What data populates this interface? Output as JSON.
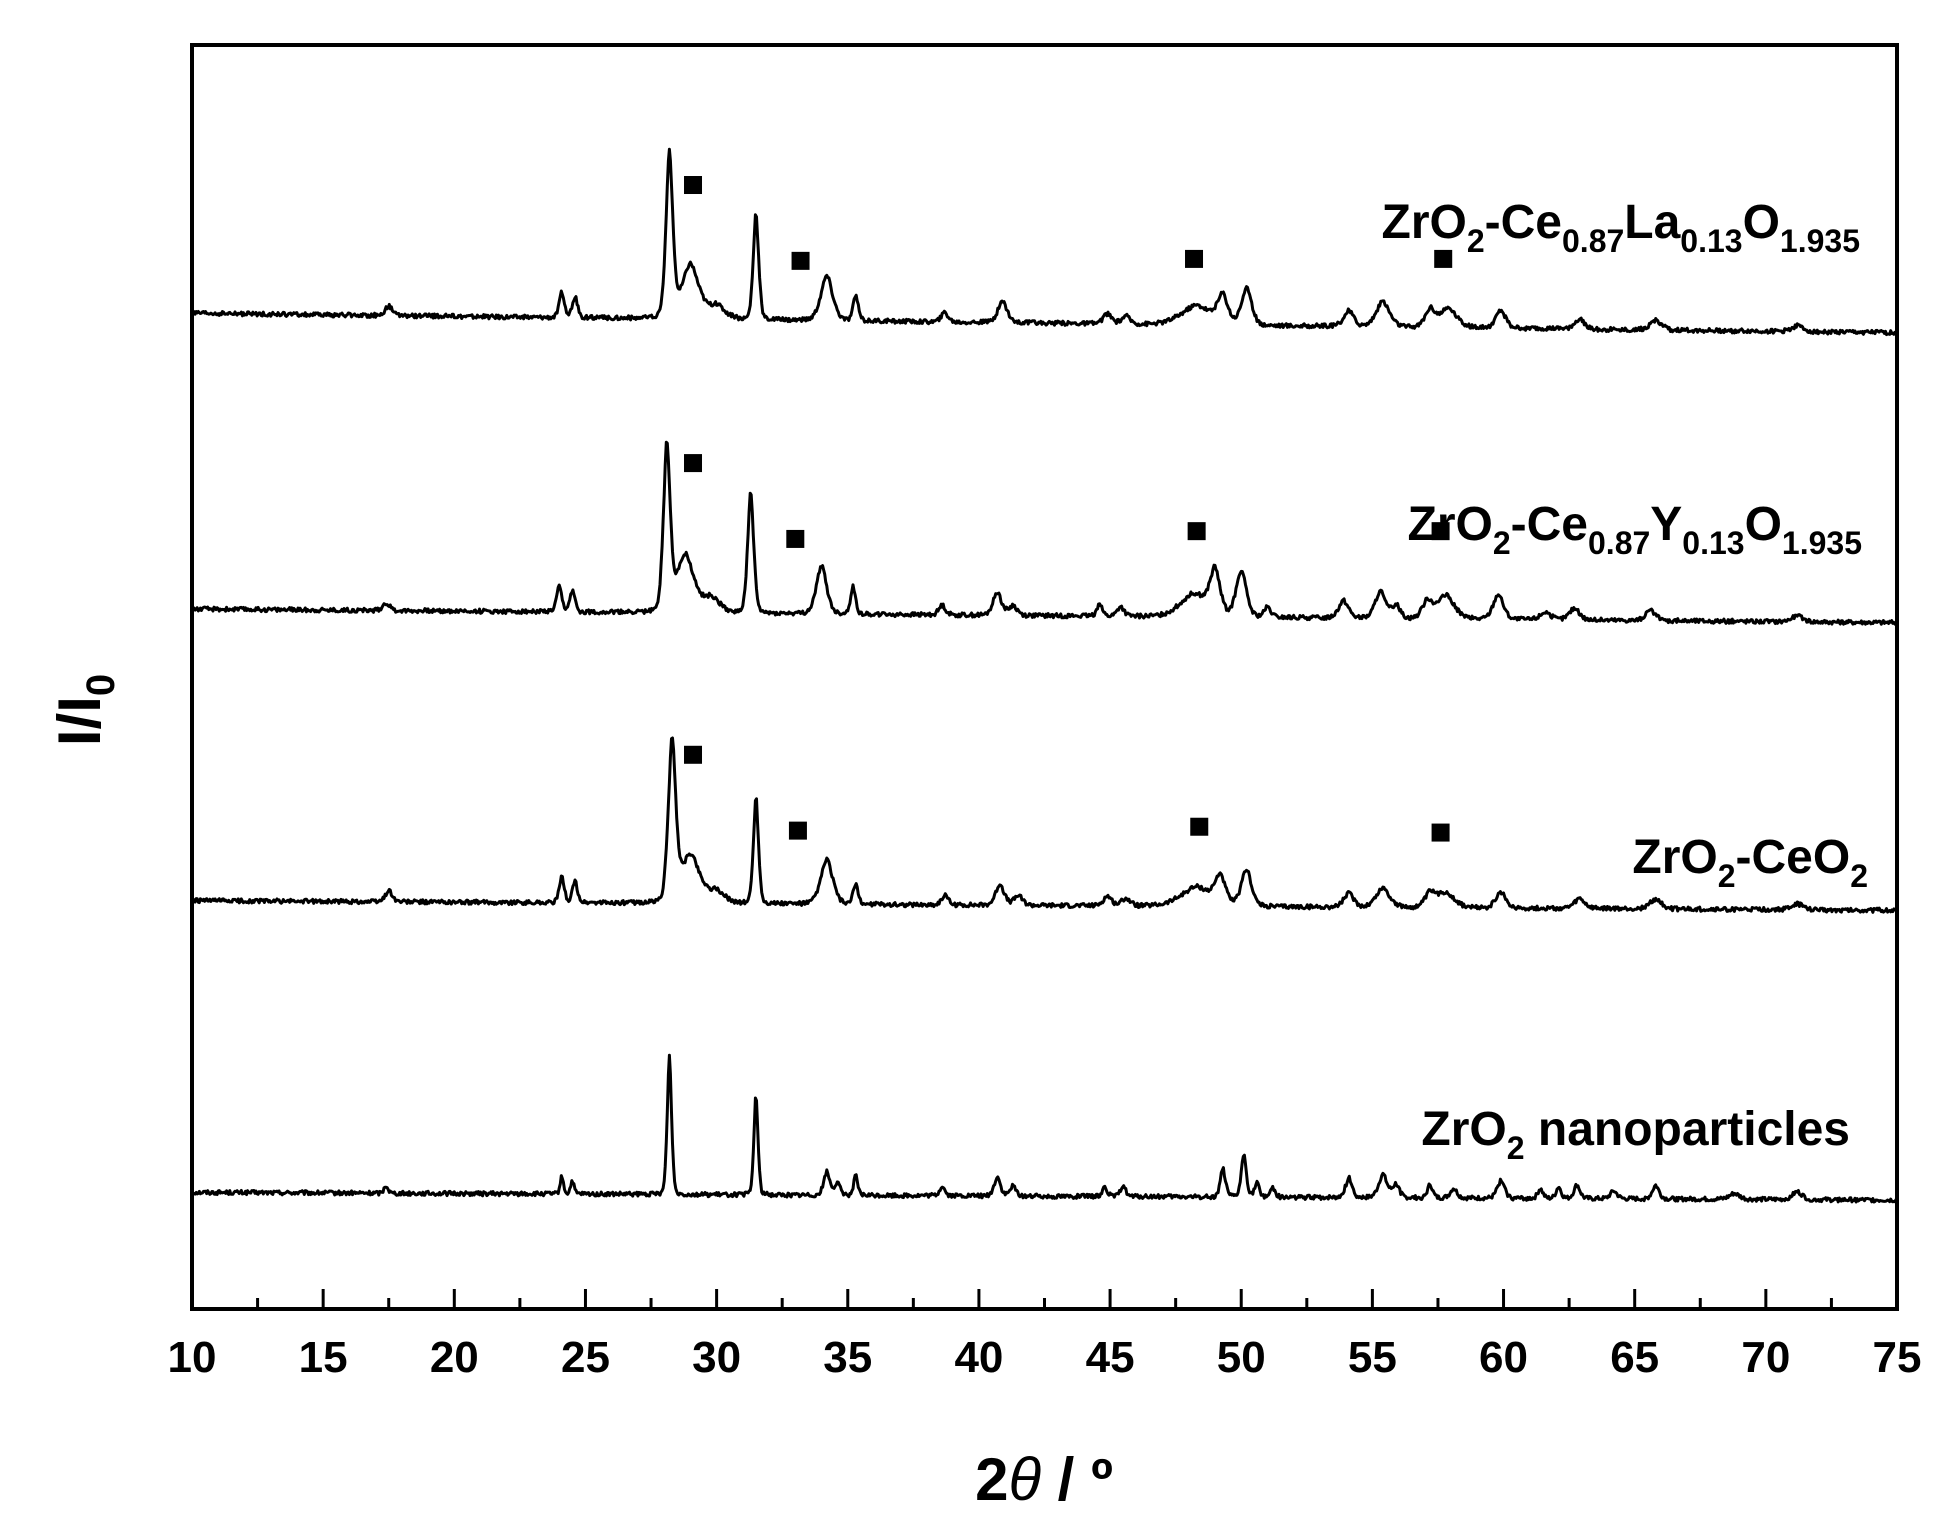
{
  "chart_data": {
    "type": "line",
    "title": "",
    "xlabel": "2θ / º",
    "xlabel_parts": {
      "prefix": "2",
      "symbol": "θ",
      "suffix": " / º"
    },
    "ylabel": "I/I0",
    "ylabel_parts": {
      "main": "I/I",
      "sub": "0"
    },
    "xlim": [
      10,
      75
    ],
    "x_ticks": [
      10,
      15,
      20,
      25,
      30,
      35,
      40,
      45,
      50,
      55,
      60,
      65,
      70,
      75
    ],
    "x_tick_labels": [
      "10",
      "15",
      "20",
      "25",
      "30",
      "35",
      "40",
      "45",
      "50",
      "55",
      "60",
      "65",
      "70",
      "75"
    ],
    "y_tick_labels": [],
    "grid": false,
    "legend": "none",
    "marker_symbol": "■",
    "series": [
      {
        "name": "ZrO2 nanoparticles",
        "label_parts": [
          {
            "text": "ZrO",
            "sub": false
          },
          {
            "text": "2",
            "sub": true
          },
          {
            "text": " nanoparticles",
            "sub": false
          }
        ],
        "baseline": [
          0.6,
          0.56
        ],
        "peaks": [
          [
            17.4,
            0.04,
            0.12
          ],
          [
            24.1,
            0.09,
            0.1
          ],
          [
            24.5,
            0.07,
            0.1
          ],
          [
            28.2,
            0.72,
            0.13
          ],
          [
            31.5,
            0.52,
            0.12
          ],
          [
            34.2,
            0.12,
            0.18
          ],
          [
            34.6,
            0.06,
            0.18
          ],
          [
            35.3,
            0.1,
            0.12
          ],
          [
            38.6,
            0.05,
            0.15
          ],
          [
            40.7,
            0.1,
            0.18
          ],
          [
            41.3,
            0.05,
            0.18
          ],
          [
            44.8,
            0.05,
            0.15
          ],
          [
            45.5,
            0.06,
            0.15
          ],
          [
            49.3,
            0.15,
            0.15
          ],
          [
            50.1,
            0.22,
            0.15
          ],
          [
            50.6,
            0.07,
            0.15
          ],
          [
            51.2,
            0.05,
            0.15
          ],
          [
            54.1,
            0.1,
            0.2
          ],
          [
            55.4,
            0.12,
            0.25
          ],
          [
            55.9,
            0.07,
            0.2
          ],
          [
            57.2,
            0.07,
            0.15
          ],
          [
            58.1,
            0.05,
            0.2
          ],
          [
            59.9,
            0.09,
            0.22
          ],
          [
            61.4,
            0.05,
            0.15
          ],
          [
            62.1,
            0.06,
            0.15
          ],
          [
            62.8,
            0.07,
            0.18
          ],
          [
            64.2,
            0.04,
            0.2
          ],
          [
            65.8,
            0.07,
            0.2
          ],
          [
            68.8,
            0.03,
            0.3
          ],
          [
            71.2,
            0.04,
            0.3
          ]
        ],
        "markers": []
      },
      {
        "name": "ZrO2-CeO2",
        "label_parts": [
          {
            "text": "ZrO",
            "sub": false
          },
          {
            "text": "2",
            "sub": true
          },
          {
            "text": "-CeO",
            "sub": false
          },
          {
            "text": "2",
            "sub": true
          }
        ],
        "baseline": [
          2.1,
          2.05
        ],
        "peaks": [
          [
            17.5,
            0.06,
            0.2
          ],
          [
            24.1,
            0.13,
            0.15
          ],
          [
            24.6,
            0.11,
            0.15
          ],
          [
            28.3,
            0.82,
            0.22
          ],
          [
            29.0,
            0.25,
            0.55
          ],
          [
            30.0,
            0.06,
            0.5
          ],
          [
            31.5,
            0.55,
            0.15
          ],
          [
            34.2,
            0.23,
            0.35
          ],
          [
            35.3,
            0.1,
            0.15
          ],
          [
            38.7,
            0.05,
            0.2
          ],
          [
            40.8,
            0.11,
            0.25
          ],
          [
            41.5,
            0.05,
            0.25
          ],
          [
            44.9,
            0.05,
            0.25
          ],
          [
            45.6,
            0.04,
            0.25
          ],
          [
            48.3,
            0.1,
            0.9
          ],
          [
            49.2,
            0.14,
            0.3
          ],
          [
            50.2,
            0.19,
            0.3
          ],
          [
            54.1,
            0.07,
            0.3
          ],
          [
            55.4,
            0.1,
            0.4
          ],
          [
            57.2,
            0.07,
            0.3
          ],
          [
            57.8,
            0.08,
            0.5
          ],
          [
            59.9,
            0.08,
            0.3
          ],
          [
            62.9,
            0.05,
            0.3
          ],
          [
            65.8,
            0.05,
            0.35
          ],
          [
            71.2,
            0.03,
            0.35
          ]
        ],
        "markers": [
          [
            29.1,
            2.85
          ],
          [
            33.1,
            2.46
          ],
          [
            48.4,
            2.48
          ],
          [
            57.6,
            2.45
          ]
        ]
      },
      {
        "name": "ZrO2-Ce0.87Y0.13O1.935",
        "label_parts": [
          {
            "text": "ZrO",
            "sub": false
          },
          {
            "text": "2",
            "sub": true
          },
          {
            "text": "-Ce",
            "sub": false
          },
          {
            "text": "0.87",
            "sub": true
          },
          {
            "text": "Y",
            "sub": false
          },
          {
            "text": "0.13",
            "sub": true
          },
          {
            "text": "O",
            "sub": false
          },
          {
            "text": "1.935",
            "sub": true
          }
        ],
        "baseline": [
          3.6,
          3.53
        ],
        "peaks": [
          [
            17.4,
            0.04,
            0.2
          ],
          [
            24.0,
            0.13,
            0.15
          ],
          [
            24.5,
            0.11,
            0.15
          ],
          [
            28.1,
            0.85,
            0.2
          ],
          [
            28.8,
            0.3,
            0.5
          ],
          [
            29.8,
            0.08,
            0.5
          ],
          [
            31.3,
            0.62,
            0.18
          ],
          [
            34.0,
            0.25,
            0.3
          ],
          [
            35.2,
            0.14,
            0.15
          ],
          [
            38.6,
            0.05,
            0.2
          ],
          [
            40.7,
            0.12,
            0.25
          ],
          [
            41.3,
            0.05,
            0.25
          ],
          [
            44.6,
            0.07,
            0.15
          ],
          [
            45.4,
            0.05,
            0.2
          ],
          [
            48.2,
            0.12,
            0.8
          ],
          [
            49.0,
            0.22,
            0.3
          ],
          [
            50.0,
            0.24,
            0.3
          ],
          [
            51.0,
            0.05,
            0.2
          ],
          [
            53.9,
            0.09,
            0.3
          ],
          [
            55.3,
            0.14,
            0.3
          ],
          [
            55.9,
            0.07,
            0.25
          ],
          [
            57.1,
            0.09,
            0.3
          ],
          [
            57.8,
            0.12,
            0.5
          ],
          [
            59.8,
            0.13,
            0.3
          ],
          [
            61.6,
            0.04,
            0.3
          ],
          [
            62.7,
            0.06,
            0.3
          ],
          [
            65.6,
            0.05,
            0.3
          ],
          [
            71.2,
            0.03,
            0.35
          ]
        ],
        "markers": [
          [
            29.1,
            4.35
          ],
          [
            33.0,
            3.96
          ],
          [
            48.3,
            4.0
          ],
          [
            57.6,
            4.0
          ]
        ]
      },
      {
        "name": "ZrO2-Ce0.87La0.13O1.935",
        "label_parts": [
          {
            "text": "ZrO",
            "sub": false
          },
          {
            "text": "2",
            "sub": true
          },
          {
            "text": "-Ce",
            "sub": false
          },
          {
            "text": "0.87",
            "sub": true
          },
          {
            "text": "La",
            "sub": false
          },
          {
            "text": "0.13",
            "sub": true
          },
          {
            "text": "O",
            "sub": false
          },
          {
            "text": "1.935",
            "sub": true
          }
        ],
        "baseline": [
          5.12,
          5.02
        ],
        "peaks": [
          [
            17.5,
            0.05,
            0.2
          ],
          [
            24.1,
            0.13,
            0.15
          ],
          [
            24.6,
            0.11,
            0.15
          ],
          [
            28.2,
            0.85,
            0.2
          ],
          [
            29.0,
            0.28,
            0.5
          ],
          [
            30.0,
            0.07,
            0.5
          ],
          [
            31.5,
            0.55,
            0.16
          ],
          [
            34.2,
            0.23,
            0.35
          ],
          [
            35.3,
            0.13,
            0.15
          ],
          [
            38.7,
            0.05,
            0.2
          ],
          [
            40.9,
            0.11,
            0.28
          ],
          [
            44.9,
            0.05,
            0.25
          ],
          [
            45.6,
            0.04,
            0.25
          ],
          [
            48.3,
            0.1,
            0.9
          ],
          [
            49.3,
            0.14,
            0.3
          ],
          [
            50.2,
            0.19,
            0.3
          ],
          [
            54.1,
            0.08,
            0.3
          ],
          [
            55.4,
            0.13,
            0.4
          ],
          [
            57.2,
            0.09,
            0.3
          ],
          [
            57.9,
            0.1,
            0.5
          ],
          [
            59.9,
            0.09,
            0.3
          ],
          [
            62.9,
            0.05,
            0.3
          ],
          [
            65.8,
            0.05,
            0.35
          ],
          [
            71.2,
            0.03,
            0.35
          ]
        ],
        "markers": [
          [
            29.1,
            5.78
          ],
          [
            33.2,
            5.39
          ],
          [
            48.2,
            5.4
          ],
          [
            57.7,
            5.4
          ]
        ]
      }
    ]
  }
}
